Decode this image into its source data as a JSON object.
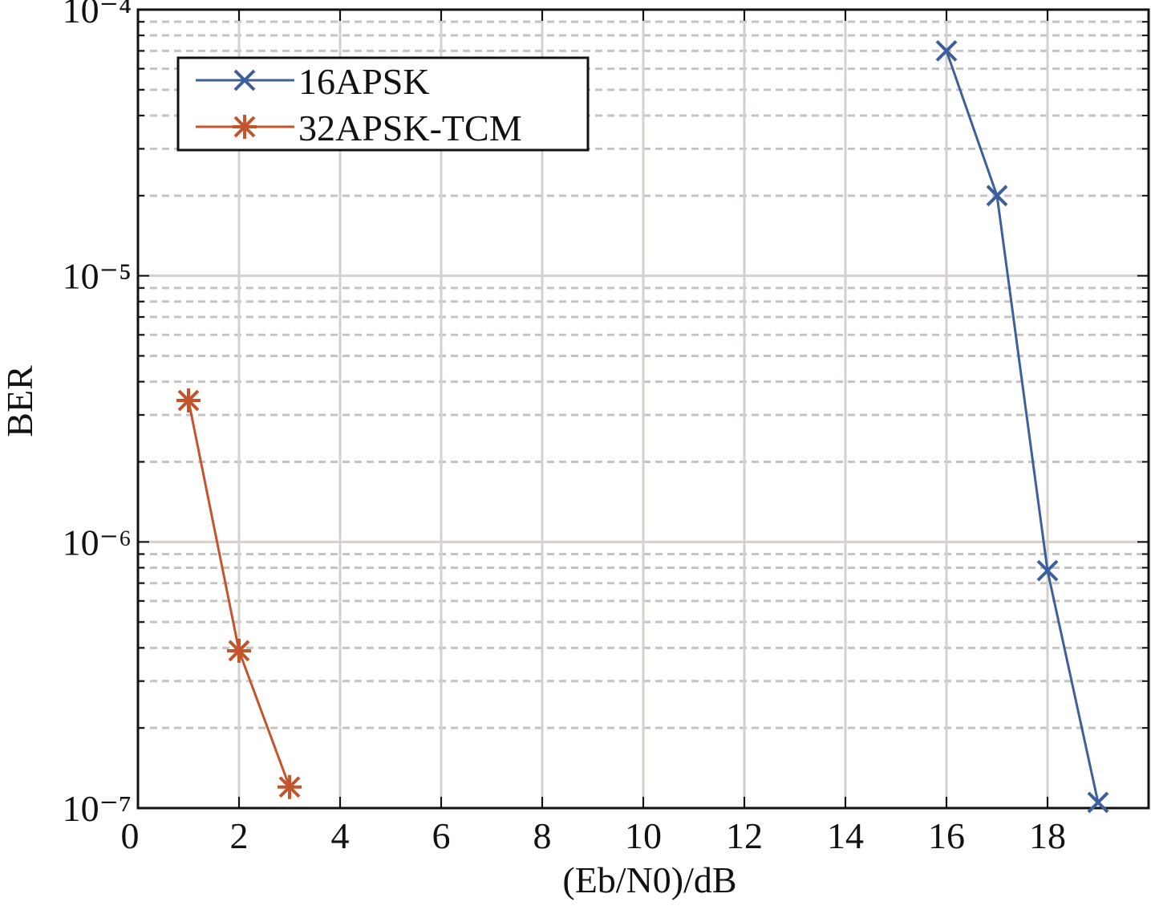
{
  "chart_data": {
    "type": "line",
    "xlabel": "(Eb/N0)/dB",
    "ylabel": "BER",
    "xlim": [
      0,
      20
    ],
    "xticks": [
      0,
      2,
      4,
      6,
      8,
      10,
      12,
      14,
      16,
      18
    ],
    "ylim": [
      1e-07,
      0.0001
    ],
    "log_y": true,
    "yticks": [
      {
        "value": 1e-07,
        "label": "10⁻⁷"
      },
      {
        "value": 1e-06,
        "label": "10⁻⁶"
      },
      {
        "value": 1e-05,
        "label": "10⁻⁵"
      },
      {
        "value": 0.0001,
        "label": "10⁻⁴"
      }
    ],
    "grid": true,
    "minor_grid": true,
    "legend": "upper left",
    "series": [
      {
        "name": "16APSK",
        "color": "#3d5f9c",
        "marker": "x",
        "x": [
          16,
          17,
          18,
          19
        ],
        "values": [
          7e-05,
          2e-05,
          7.8e-07,
          1.05e-07
        ]
      },
      {
        "name": "32APSK-TCM",
        "color": "#c4542c",
        "marker": "asterisk",
        "x": [
          1,
          2,
          3
        ],
        "values": [
          3.4e-06,
          3.9e-07,
          1.2e-07
        ]
      }
    ]
  }
}
